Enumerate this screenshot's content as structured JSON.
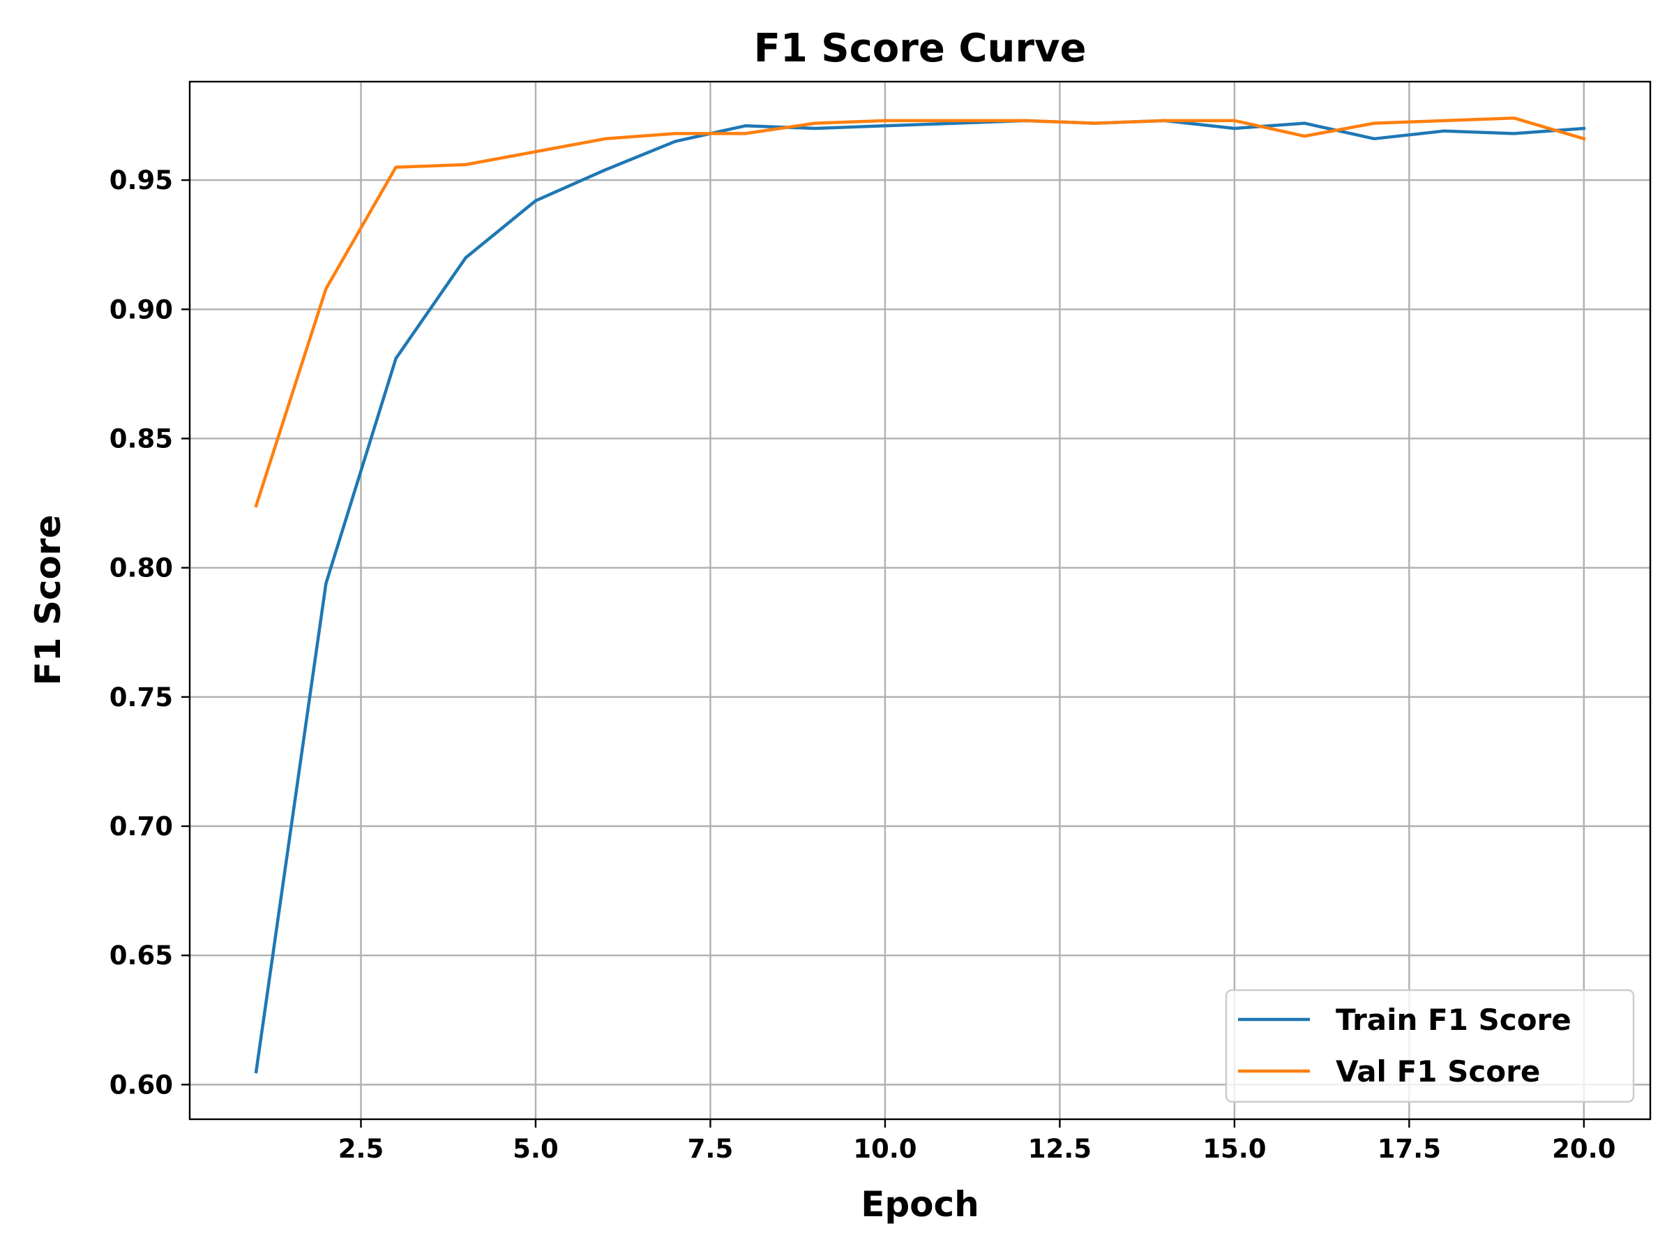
{
  "chart_data": {
    "type": "line",
    "title": "F1 Score Curve",
    "xlabel": "Epoch",
    "ylabel": "F1 Score",
    "x": [
      1,
      2,
      3,
      4,
      5,
      6,
      7,
      8,
      9,
      10,
      11,
      12,
      13,
      14,
      15,
      16,
      17,
      18,
      19,
      20
    ],
    "series": [
      {
        "name": "Train F1 Score",
        "color": "#1f77b4",
        "values": [
          0.605,
          0.794,
          0.881,
          0.92,
          0.942,
          0.954,
          0.965,
          0.971,
          0.97,
          0.971,
          0.972,
          0.973,
          0.972,
          0.973,
          0.97,
          0.972,
          0.966,
          0.969,
          0.968,
          0.97
        ]
      },
      {
        "name": "Val F1 Score",
        "color": "#ff7f0e",
        "values": [
          0.824,
          0.908,
          0.955,
          0.956,
          0.961,
          0.966,
          0.968,
          0.968,
          0.972,
          0.973,
          0.973,
          0.973,
          0.972,
          0.973,
          0.973,
          0.967,
          0.972,
          0.973,
          0.974,
          0.966
        ]
      }
    ],
    "xlim": [
      0.05,
      20.95
    ],
    "ylim": [
      0.5866,
      0.9881
    ],
    "xticks": [
      2.5,
      5.0,
      7.5,
      10.0,
      12.5,
      15.0,
      17.5,
      20.0
    ],
    "xtick_labels": [
      "2.5",
      "5.0",
      "7.5",
      "10.0",
      "12.5",
      "15.0",
      "17.5",
      "20.0"
    ],
    "yticks": [
      0.6,
      0.65,
      0.7,
      0.75,
      0.8,
      0.85,
      0.9,
      0.95
    ],
    "ytick_labels": [
      "0.60",
      "0.65",
      "0.70",
      "0.75",
      "0.80",
      "0.85",
      "0.90",
      "0.95"
    ],
    "grid": true,
    "legend_position": "lower-right"
  }
}
